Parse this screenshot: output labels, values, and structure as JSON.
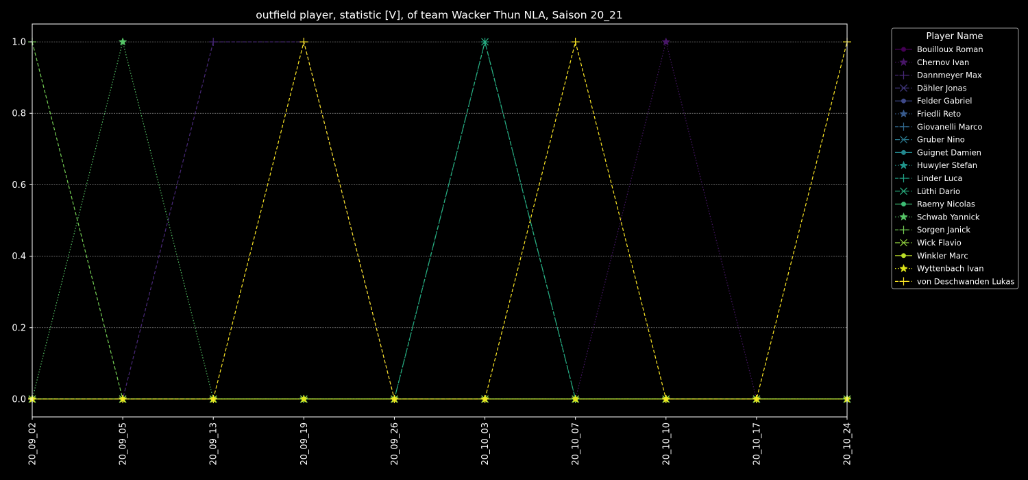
{
  "chart_data": {
    "type": "line",
    "title": "outfield player, statistic [V], of team Wacker Thun NLA, Saison 20_21",
    "xlabel": "",
    "ylabel": "",
    "x": [
      "20_09_02",
      "20_09_05",
      "20_09_13",
      "20_09_19",
      "20_09_26",
      "20_10_03",
      "20_10_07",
      "20_10_10",
      "20_10_17",
      "20_10_24"
    ],
    "ylim": [
      -0.05,
      1.05
    ],
    "yticks": [
      "0.0",
      "0.2",
      "0.4",
      "0.6",
      "0.8",
      "1.0"
    ],
    "grid": true,
    "legend": {
      "title": "Player Name",
      "placement": "outside-right"
    },
    "series": [
      {
        "name": "Bouilloux Roman",
        "color": "#440154",
        "marker": "circle",
        "dash": "solid",
        "values": [
          0,
          0,
          0,
          0,
          0,
          0,
          0,
          0,
          0,
          0
        ]
      },
      {
        "name": "Chernov Ivan",
        "color": "#481668",
        "marker": "star",
        "dash": "dotted",
        "values": [
          0,
          0,
          0,
          0,
          0,
          0,
          0,
          1,
          0,
          0
        ]
      },
      {
        "name": "Dannmeyer Max",
        "color": "#482878",
        "marker": "plus",
        "dash": "dashed",
        "values": [
          0,
          0,
          1,
          1,
          0,
          0,
          0,
          0,
          0,
          0
        ]
      },
      {
        "name": "Dähler Jonas",
        "color": "#443983",
        "marker": "x",
        "dash": "dashdot",
        "values": [
          0,
          0,
          0,
          0,
          0,
          0,
          0,
          0,
          0,
          0
        ]
      },
      {
        "name": "Felder Gabriel",
        "color": "#3e4989",
        "marker": "circle",
        "dash": "solid",
        "values": [
          0,
          0,
          0,
          0,
          0,
          0,
          0,
          0,
          0,
          0
        ]
      },
      {
        "name": "Friedli Reto",
        "color": "#375a8c",
        "marker": "star",
        "dash": "dotted",
        "values": [
          0,
          0,
          0,
          0,
          0,
          0,
          0,
          0,
          0,
          0
        ]
      },
      {
        "name": "Giovanelli Marco",
        "color": "#31688e",
        "marker": "plus",
        "dash": "dashed",
        "values": [
          0,
          0,
          0,
          0,
          0,
          0,
          0,
          0,
          0,
          0
        ]
      },
      {
        "name": "Gruber Nino",
        "color": "#2a788e",
        "marker": "x",
        "dash": "dashdot",
        "values": [
          0,
          0,
          0,
          0,
          0,
          0,
          0,
          0,
          0,
          0
        ]
      },
      {
        "name": "Guignet Damien",
        "color": "#23888e",
        "marker": "circle",
        "dash": "solid",
        "values": [
          0,
          0,
          0,
          0,
          0,
          0,
          0,
          0,
          0,
          0
        ]
      },
      {
        "name": "Huwyler Stefan",
        "color": "#1f968b",
        "marker": "star",
        "dash": "dotted",
        "values": [
          0,
          0,
          0,
          0,
          0,
          0,
          0,
          0,
          0,
          0
        ]
      },
      {
        "name": "Linder Luca",
        "color": "#20a386",
        "marker": "plus",
        "dash": "dashed",
        "values": [
          0,
          0,
          0,
          0,
          0,
          1,
          0,
          0,
          0,
          0
        ]
      },
      {
        "name": "Lüthi Dario",
        "color": "#29af7f",
        "marker": "x",
        "dash": "dashdot",
        "values": [
          0,
          0,
          0,
          0,
          0,
          1,
          0,
          0,
          0,
          0
        ]
      },
      {
        "name": "Raemy Nicolas",
        "color": "#3dbc74",
        "marker": "circle",
        "dash": "solid",
        "values": [
          0,
          0,
          0,
          0,
          0,
          0,
          0,
          0,
          0,
          0
        ]
      },
      {
        "name": "Schwab Yannick",
        "color": "#56c667",
        "marker": "star",
        "dash": "dotted",
        "values": [
          0,
          1,
          0,
          0,
          0,
          0,
          0,
          0,
          0,
          0
        ]
      },
      {
        "name": "Sorgen Janick",
        "color": "#75d054",
        "marker": "plus",
        "dash": "dashed",
        "values": [
          1,
          0,
          0,
          0,
          0,
          0,
          0,
          0,
          0,
          0
        ]
      },
      {
        "name": "Wick Flavio",
        "color": "#95d840",
        "marker": "x",
        "dash": "dashdot",
        "values": [
          0,
          0,
          0,
          0,
          0,
          0,
          0,
          0,
          0,
          0
        ]
      },
      {
        "name": "Winkler Marc",
        "color": "#bade28",
        "marker": "circle",
        "dash": "solid",
        "values": [
          0,
          0,
          0,
          0,
          0,
          0,
          0,
          0,
          0,
          0
        ]
      },
      {
        "name": "Wyttenbach Ivan",
        "color": "#dde318",
        "marker": "star",
        "dash": "dotted",
        "values": [
          0,
          0,
          0,
          0,
          0,
          0,
          0,
          0,
          0,
          0
        ]
      },
      {
        "name": "von Deschwanden Lukas",
        "color": "#fde725",
        "marker": "plus",
        "dash": "dashed",
        "values": [
          0,
          0,
          0,
          1,
          0,
          0,
          1,
          0,
          0,
          1
        ]
      }
    ]
  }
}
